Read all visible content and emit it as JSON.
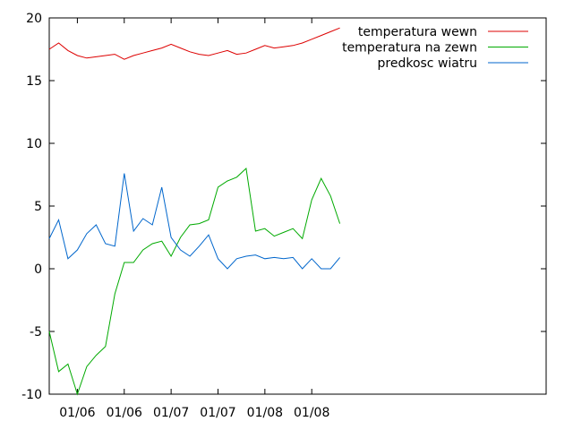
{
  "chart_data": {
    "type": "line",
    "title": "",
    "xlabel": "",
    "ylabel": "",
    "ylim": [
      -10,
      20
    ],
    "y_ticks": [
      -10,
      -5,
      0,
      5,
      10,
      15,
      20
    ],
    "x_domain": [
      "06/28",
      "08/20"
    ],
    "x_ticks": [
      {
        "date": "07/01",
        "label": "01/06"
      },
      {
        "date": "07/06",
        "label": "01/06"
      },
      {
        "date": "07/11",
        "label": "01/07"
      },
      {
        "date": "07/16",
        "label": "01/07"
      },
      {
        "date": "07/21",
        "label": "01/08"
      },
      {
        "date": "07/26",
        "label": "01/08"
      }
    ],
    "grid": false,
    "legend_position": "top-right",
    "series": [
      {
        "name": "temperatura wewn",
        "color": "#dd0000",
        "x": [
          "06/28",
          "06/29",
          "06/30",
          "07/01",
          "07/02",
          "07/03",
          "07/04",
          "07/05",
          "07/06",
          "07/07",
          "07/08",
          "07/09",
          "07/10",
          "07/11",
          "07/12",
          "07/13",
          "07/14",
          "07/15",
          "07/16",
          "07/17",
          "07/18",
          "07/19",
          "07/20",
          "07/21",
          "07/22",
          "07/23",
          "07/24",
          "07/25",
          "07/26",
          "07/27",
          "07/28",
          "07/29"
        ],
        "values": [
          17.5,
          18.0,
          17.4,
          17.0,
          16.8,
          16.9,
          17.0,
          17.1,
          16.7,
          17.0,
          17.2,
          17.4,
          17.6,
          17.9,
          17.6,
          17.3,
          17.1,
          17.0,
          17.2,
          17.4,
          17.1,
          17.2,
          17.5,
          17.8,
          17.6,
          17.7,
          17.8,
          18.0,
          18.3,
          18.6,
          18.9,
          19.2
        ]
      },
      {
        "name": "temperatura na zewn",
        "color": "#00aa00",
        "x": [
          "06/28",
          "06/29",
          "06/30",
          "07/01",
          "07/02",
          "07/03",
          "07/04",
          "07/05",
          "07/06",
          "07/07",
          "07/08",
          "07/09",
          "07/10",
          "07/11",
          "07/12",
          "07/13",
          "07/14",
          "07/15",
          "07/16",
          "07/17",
          "07/18",
          "07/19",
          "07/20",
          "07/21",
          "07/22",
          "07/23",
          "07/24",
          "07/25",
          "07/26",
          "07/27",
          "07/28",
          "07/29"
        ],
        "values": [
          -5.0,
          -8.2,
          -7.6,
          -10.0,
          -7.8,
          -6.9,
          -6.2,
          -2.0,
          0.5,
          0.5,
          1.5,
          2.0,
          2.2,
          1.0,
          2.5,
          3.5,
          3.6,
          3.9,
          6.5,
          7.0,
          7.3,
          8.0,
          3.0,
          3.2,
          2.6,
          2.9,
          3.2,
          2.4,
          5.5,
          7.2,
          5.8,
          3.6
        ]
      },
      {
        "name": "predkosc wiatru",
        "color": "#0066cc",
        "x": [
          "06/28",
          "06/29",
          "06/30",
          "07/01",
          "07/02",
          "07/03",
          "07/04",
          "07/05",
          "07/06",
          "07/07",
          "07/08",
          "07/09",
          "07/10",
          "07/11",
          "07/12",
          "07/13",
          "07/14",
          "07/15",
          "07/16",
          "07/17",
          "07/18",
          "07/19",
          "07/20",
          "07/21",
          "07/22",
          "07/23",
          "07/24",
          "07/25",
          "07/26",
          "07/27",
          "07/28",
          "07/29"
        ],
        "values": [
          2.4,
          3.9,
          0.8,
          1.5,
          2.8,
          3.5,
          2.0,
          1.8,
          7.6,
          3.0,
          4.0,
          3.5,
          6.5,
          2.5,
          1.5,
          1.0,
          1.8,
          2.7,
          0.8,
          0.0,
          0.8,
          1.0,
          1.1,
          0.8,
          0.9,
          0.8,
          0.9,
          0.0,
          0.8,
          0.0,
          0.0,
          0.9
        ]
      }
    ]
  }
}
